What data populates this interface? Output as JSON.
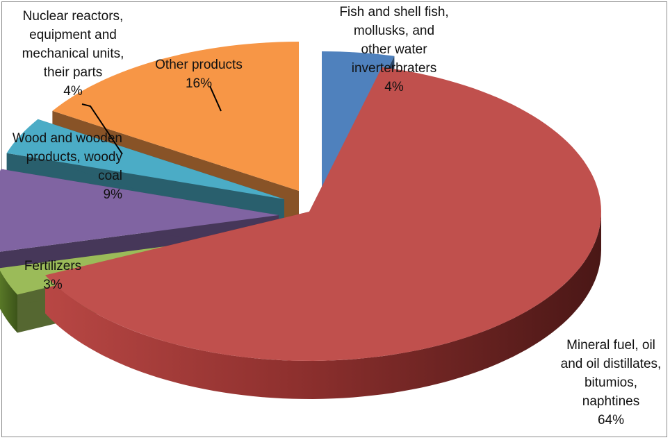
{
  "chart_data": {
    "type": "pie",
    "style": "3d-exploded",
    "legend": "none",
    "slices": [
      {
        "name": "Fish and shell fish, mollusks, and other water inverterbraters",
        "value": 4,
        "label": "4%",
        "color": "#4f81bd",
        "lines": [
          "Fish and shell fish,",
          "mollusks, and",
          "other water",
          "inverterbraters"
        ]
      },
      {
        "name": "Mineral fuel, oil and oil distillates, bitumios, naphtines",
        "value": 64,
        "label": "64%",
        "color": "#c0504d",
        "lines": [
          "Mineral fuel, oil",
          "and oil distillates,",
          "bitumios,",
          "naphtines"
        ]
      },
      {
        "name": "Fertilizers",
        "value": 3,
        "label": "3%",
        "color": "#9bbb59",
        "lines": [
          "Fertilizers"
        ]
      },
      {
        "name": "Wood and wooden products, woody coal",
        "value": 9,
        "label": "9%",
        "color": "#8064a2",
        "lines": [
          "Wood and wooden",
          "products,  woody",
          "coal"
        ]
      },
      {
        "name": "Nuclear reactors, equipment and mechanical units, their parts",
        "value": 4,
        "label": "4%",
        "color": "#4bacc6",
        "lines": [
          "Nuclear reactors,",
          "equipment and",
          "mechanical units,",
          "their parts"
        ]
      },
      {
        "name": "Other products",
        "value": 16,
        "label": "16%",
        "color": "#f79646",
        "lines": [
          "Other products"
        ]
      }
    ]
  }
}
